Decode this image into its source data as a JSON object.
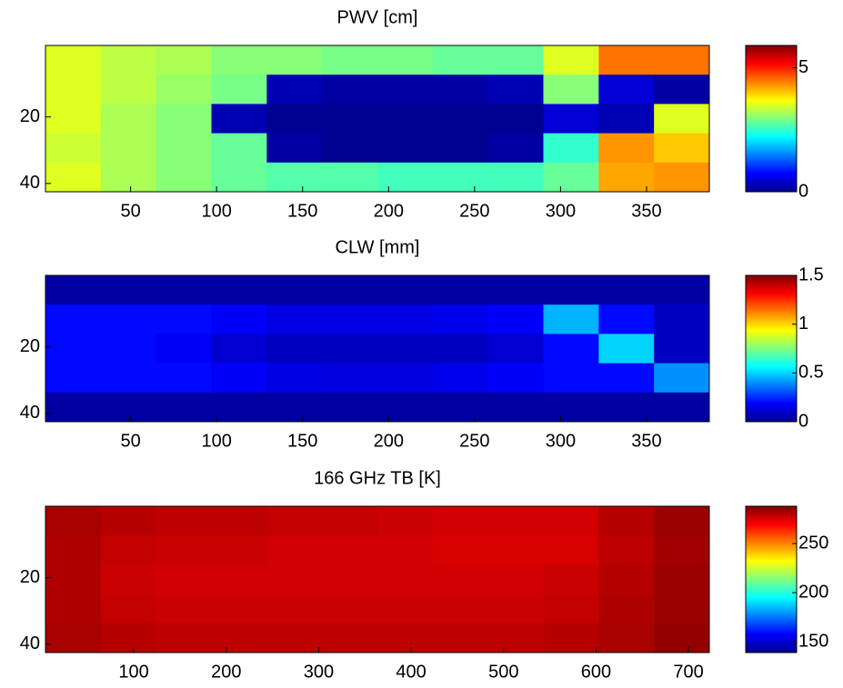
{
  "chart_data": [
    {
      "type": "heatmap",
      "title": "PWV [cm]",
      "colormap": "jet",
      "xlim": [
        0.5,
        386.5
      ],
      "xticks": [
        50,
        100,
        150,
        200,
        250,
        300,
        350
      ],
      "ylim": [
        -1.5,
        42.5
      ],
      "yticks": [
        20,
        40
      ],
      "clim": [
        0,
        5.9
      ],
      "cticks": [
        0,
        5
      ],
      "z": [
        [
          3.5,
          3.3,
          3.2,
          3.0,
          3.0,
          2.9,
          2.9,
          2.8,
          2.8,
          3.5,
          4.5,
          4.5
        ],
        [
          3.5,
          3.3,
          3.1,
          2.9,
          0.3,
          0.2,
          0.2,
          0.2,
          0.3,
          3.0,
          0.5,
          0.2
        ],
        [
          3.5,
          3.2,
          3.0,
          0.3,
          0.1,
          0.1,
          0.1,
          0.1,
          0.1,
          0.5,
          0.3,
          3.5
        ],
        [
          3.4,
          3.2,
          3.0,
          2.8,
          0.2,
          0.1,
          0.1,
          0.1,
          0.2,
          2.5,
          4.3,
          4.0
        ],
        [
          3.5,
          3.2,
          3.0,
          2.8,
          2.7,
          2.7,
          2.6,
          2.6,
          2.6,
          2.8,
          4.2,
          4.3
        ]
      ]
    },
    {
      "type": "heatmap",
      "title": "CLW [mm]",
      "colormap": "jet",
      "xlim": [
        0.5,
        386.5
      ],
      "xticks": [
        50,
        100,
        150,
        200,
        250,
        300,
        350
      ],
      "ylim": [
        -1.5,
        42.5
      ],
      "yticks": [
        20,
        40
      ],
      "clim": [
        0,
        1.5
      ],
      "cticks": [
        0,
        0.5,
        1,
        1.5
      ],
      "z": [
        [
          0.05,
          0.05,
          0.05,
          0.05,
          0.05,
          0.05,
          0.05,
          0.05,
          0.05,
          0.05,
          0.05,
          0.05
        ],
        [
          0.2,
          0.2,
          0.2,
          0.18,
          0.15,
          0.15,
          0.15,
          0.16,
          0.18,
          0.45,
          0.2,
          0.1
        ],
        [
          0.2,
          0.2,
          0.18,
          0.12,
          0.1,
          0.1,
          0.1,
          0.1,
          0.12,
          0.2,
          0.5,
          0.1
        ],
        [
          0.2,
          0.2,
          0.2,
          0.18,
          0.15,
          0.14,
          0.14,
          0.16,
          0.18,
          0.2,
          0.2,
          0.4
        ],
        [
          0.05,
          0.05,
          0.05,
          0.05,
          0.05,
          0.05,
          0.05,
          0.05,
          0.05,
          0.05,
          0.05,
          0.05
        ]
      ]
    },
    {
      "type": "heatmap",
      "title": "166 GHz TB [K]",
      "colormap": "jet",
      "xlim": [
        4.5,
        722.5
      ],
      "xticks": [
        100,
        200,
        300,
        400,
        500,
        600,
        700
      ],
      "ylim": [
        -1.5,
        42.5
      ],
      "yticks": [
        20,
        40
      ],
      "clim": [
        139,
        288
      ],
      "cticks": [
        150,
        200,
        250
      ],
      "z": [
        [
          282,
          280,
          279,
          279,
          278,
          278,
          277,
          276,
          276,
          276,
          280,
          284
        ],
        [
          281,
          278,
          277,
          277,
          276,
          276,
          276,
          275,
          275,
          275,
          279,
          283
        ],
        [
          281,
          277,
          276,
          276,
          276,
          276,
          276,
          276,
          276,
          277,
          280,
          284
        ],
        [
          281,
          278,
          277,
          277,
          277,
          277,
          277,
          277,
          277,
          278,
          281,
          284
        ],
        [
          282,
          280,
          279,
          279,
          279,
          279,
          279,
          279,
          279,
          280,
          282,
          285
        ]
      ]
    }
  ]
}
